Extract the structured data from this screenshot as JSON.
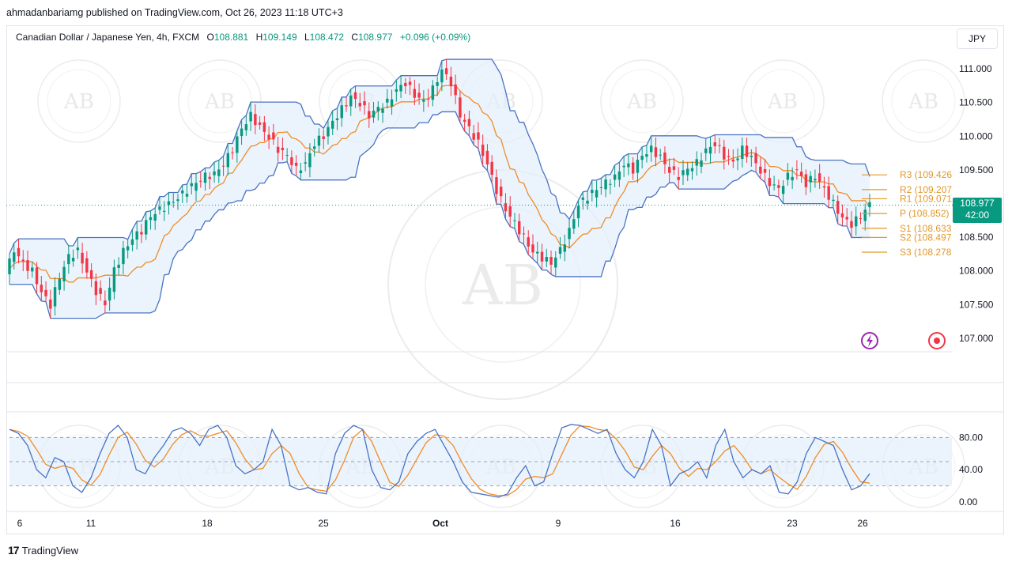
{
  "header": {
    "publisher_line": "ahmadanbariamg published on TradingView.com, Oct 26, 2023 11:18 UTC+3"
  },
  "legend": {
    "symbol": "Canadian Dollar / Japanese Yen, 4h, FXCM",
    "open_label": "O",
    "open": "108.881",
    "high_label": "H",
    "high": "109.149",
    "low_label": "L",
    "low": "108.472",
    "close_label": "C",
    "close": "108.977",
    "change": "+0.096 (+0.09%)"
  },
  "currency_button": "JPY",
  "last_price": {
    "value": "108.977",
    "countdown": "42:00"
  },
  "price_axis": [
    "111.000",
    "110.500",
    "110.000",
    "109.500",
    "109.000",
    "108.500",
    "108.000",
    "107.500",
    "107.000"
  ],
  "pivots": [
    {
      "label": "R3 (109.426"
    },
    {
      "label": "R2 (109.207"
    },
    {
      "label": "R1 (109.071"
    },
    {
      "label": "P (108.852)"
    },
    {
      "label": "S1 (108.633"
    },
    {
      "label": "S2 (108.497"
    },
    {
      "label": "S3 (108.278"
    }
  ],
  "oscillator_axis": [
    "80.00",
    "40.00",
    "0.00"
  ],
  "time_axis": [
    "6",
    "11",
    "18",
    "25",
    "Oct",
    "9",
    "16",
    "23",
    "26"
  ],
  "footer": {
    "brand": "TradingView",
    "brand_mark": "17"
  },
  "watermark_text": "AB",
  "colors": {
    "up": "#089981",
    "down": "#f23645",
    "channel": "#4a72c4",
    "midline": "#f08c28",
    "pivot": "#e0992b",
    "stoch_k": "#4a72c4",
    "stoch_d": "#f08c28"
  },
  "icons": [
    "lightning-icon",
    "record-icon"
  ],
  "chart_data": {
    "type": "candlestick",
    "timeframe": "4h",
    "x_labels": [
      "6",
      "11",
      "18",
      "25",
      "Oct",
      "9",
      "16",
      "23",
      "26"
    ],
    "ylim": [
      106.8,
      111.2
    ],
    "close_path": [
      107.95,
      108.3,
      108.1,
      108.0,
      107.7,
      107.5,
      107.9,
      108.2,
      108.3,
      108.0,
      107.7,
      107.5,
      108.0,
      108.3,
      108.5,
      108.6,
      108.8,
      108.9,
      109.0,
      109.1,
      109.2,
      109.3,
      109.4,
      109.45,
      109.6,
      109.8,
      110.1,
      110.3,
      110.15,
      110.0,
      109.8,
      109.7,
      109.5,
      109.6,
      109.9,
      110.0,
      110.2,
      110.4,
      110.6,
      110.5,
      110.3,
      110.4,
      110.5,
      110.7,
      110.8,
      110.6,
      110.5,
      110.7,
      111.0,
      110.8,
      110.3,
      110.1,
      109.9,
      109.6,
      109.2,
      108.9,
      108.7,
      108.5,
      108.3,
      108.2,
      108.1,
      108.3,
      108.6,
      109.0,
      109.1,
      109.2,
      109.3,
      109.4,
      109.6,
      109.5,
      109.7,
      109.8,
      109.7,
      109.5,
      109.4,
      109.5,
      109.6,
      109.8,
      109.9,
      109.7,
      109.6,
      109.8,
      109.7,
      109.5,
      109.3,
      109.2,
      109.4,
      109.5,
      109.3,
      109.4,
      109.2,
      109.0,
      108.8,
      108.7,
      108.8,
      108.977
    ],
    "pivot_levels": {
      "R3": 109.426,
      "R2": 109.207,
      "R1": 109.071,
      "P": 108.852,
      "S1": 108.633,
      "S2": 108.497,
      "S3": 108.278
    },
    "oscillator": {
      "type": "stochastic",
      "ylim": [
        0,
        100
      ],
      "levels": [
        80,
        50,
        20
      ],
      "k": [
        90,
        85,
        70,
        40,
        30,
        55,
        50,
        20,
        12,
        30,
        60,
        85,
        95,
        80,
        40,
        35,
        55,
        70,
        88,
        92,
        85,
        70,
        90,
        95,
        80,
        45,
        35,
        40,
        50,
        90,
        70,
        20,
        15,
        18,
        12,
        10,
        60,
        85,
        95,
        90,
        40,
        18,
        15,
        25,
        60,
        75,
        85,
        90,
        70,
        50,
        25,
        12,
        10,
        8,
        6,
        10,
        30,
        45,
        20,
        25,
        60,
        92,
        96,
        95,
        90,
        85,
        90,
        60,
        40,
        30,
        50,
        90,
        70,
        20,
        35,
        40,
        50,
        30,
        70,
        90,
        50,
        30,
        40,
        35,
        45,
        12,
        10,
        25,
        60,
        80,
        75,
        70,
        40,
        15,
        20,
        35
      ]
    }
  }
}
